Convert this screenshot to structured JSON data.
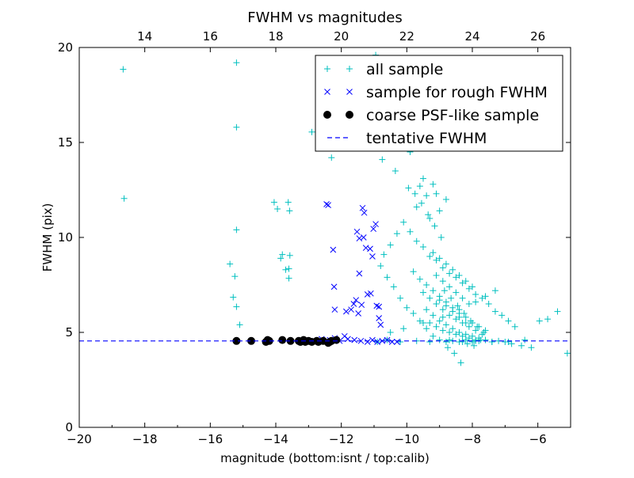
{
  "chart_data": {
    "type": "scatter",
    "title": "FWHM vs magnitudes",
    "xlabel": "magnitude (bottom:isnt / top:calib)",
    "ylabel": "FWHM (pix)",
    "xlim": [
      -20,
      -5
    ],
    "ylim": [
      0,
      20
    ],
    "xticks": [
      -20,
      -18,
      -16,
      -14,
      -12,
      -10,
      -8,
      -6
    ],
    "xtick_labels": [
      "−20",
      "−18",
      "−16",
      "−14",
      "−12",
      "−10",
      "−8",
      "−6"
    ],
    "yticks": [
      0,
      5,
      10,
      15,
      20
    ],
    "ytick_labels": [
      "0",
      "5",
      "10",
      "15",
      "20"
    ],
    "top_axis": {
      "offset": 32,
      "ticks": [
        14,
        16,
        18,
        20,
        22,
        24,
        26
      ],
      "tick_labels": [
        "14",
        "16",
        "18",
        "20",
        "22",
        "24",
        "26"
      ]
    },
    "grid": false,
    "legend_position": "top-right",
    "series": [
      {
        "name": "all sample",
        "marker": "plus",
        "color": "#00BFBF",
        "x": [
          -15.2,
          -15.2,
          -15.2,
          -15.4,
          -15.25,
          -15.3,
          -15.2,
          -15.1,
          -18.66,
          -18.63,
          -14.05,
          -13.95,
          -13.62,
          -13.58,
          -13.57,
          -13.8,
          -13.85,
          -13.6,
          -13.7,
          -13.6,
          -12.9,
          -12.3,
          -11.05,
          -10.95,
          -10.75,
          -10.35,
          -9.9,
          -9.6,
          -9.5,
          -9.2,
          -9.1,
          -9.4,
          -8.8,
          -9.0,
          -9.3,
          -9.7,
          -10.1,
          -10.3,
          -10.5,
          -10.7,
          -10.8,
          -10.6,
          -10.4,
          -10.2,
          -10.0,
          -9.8,
          -9.6,
          -9.4,
          -9.2,
          -9.0,
          -8.8,
          -8.6,
          -8.4,
          -8.2,
          -8.0,
          -7.8,
          -7.6,
          -7.4,
          -7.2,
          -7.0,
          -6.8,
          -6.5,
          -6.2,
          -5.95,
          -5.7,
          -5.4,
          -5.1,
          -9.9,
          -9.7,
          -9.5,
          -9.3,
          -9.1,
          -8.9,
          -8.7,
          -8.5,
          -8.3,
          -8.1,
          -7.9,
          -7.7,
          -7.5,
          -7.3,
          -7.1,
          -6.9,
          -6.7,
          -9.8,
          -9.6,
          -9.4,
          -9.2,
          -9.0,
          -8.8,
          -8.6,
          -8.4,
          -8.2,
          -8.0,
          -7.8,
          -7.6,
          -9.5,
          -9.3,
          -9.1,
          -8.9,
          -8.7,
          -8.5,
          -8.3,
          -8.1,
          -7.9,
          -7.7,
          -9.4,
          -9.2,
          -9.0,
          -8.8,
          -8.6,
          -8.4,
          -8.2,
          -8.0,
          -7.8,
          -9.3,
          -9.1,
          -8.9,
          -8.7,
          -8.5,
          -8.3,
          -8.1,
          -7.9,
          -9.2,
          -9.0,
          -8.8,
          -8.6,
          -8.4,
          -8.2,
          -8.0,
          -9.1,
          -8.9,
          -8.7,
          -8.5,
          -8.3,
          -8.1,
          -9.0,
          -8.8,
          -8.6,
          -8.4,
          -8.2,
          -10.9,
          -10.6,
          -10.2,
          -9.7,
          -9.3,
          -8.7,
          -8.3,
          -7.9,
          -7.4,
          -6.9,
          -6.4,
          -10.5,
          -10.1,
          -9.5,
          -8.9,
          -8.4,
          -7.9,
          -7.6,
          -7.3,
          -8.25,
          -8.45,
          -8.65,
          -8.85,
          -8.05,
          -7.85,
          -7.65,
          -8.35,
          -8.55,
          -8.75,
          -8.15,
          -7.95,
          -7.75,
          -9.35,
          -9.55,
          -9.75,
          -9.95,
          -9.15,
          -8.95
        ],
        "y": [
          19.2,
          15.8,
          10.4,
          8.6,
          7.95,
          6.85,
          6.35,
          5.4,
          18.85,
          12.05,
          11.85,
          11.5,
          11.85,
          11.4,
          9.05,
          9.1,
          8.9,
          8.35,
          8.3,
          7.85,
          15.55,
          14.2,
          17.9,
          19.6,
          14.1,
          13.5,
          14.5,
          12.7,
          13.1,
          12.8,
          12.3,
          12.2,
          12.0,
          11.4,
          11.0,
          11.6,
          10.8,
          10.2,
          9.6,
          9.1,
          8.5,
          7.9,
          7.4,
          6.8,
          6.3,
          6.0,
          5.6,
          5.2,
          4.8,
          4.6,
          4.5,
          4.55,
          4.5,
          4.6,
          4.5,
          4.55,
          4.6,
          4.5,
          4.55,
          4.5,
          4.4,
          4.3,
          4.2,
          5.6,
          5.7,
          6.1,
          3.9,
          10.3,
          9.8,
          9.5,
          9.0,
          8.8,
          8.4,
          8.1,
          7.9,
          7.6,
          7.3,
          7.0,
          6.8,
          6.5,
          6.1,
          5.9,
          5.6,
          5.3,
          8.2,
          7.8,
          7.5,
          7.2,
          6.9,
          6.6,
          6.3,
          6.0,
          5.8,
          5.5,
          5.3,
          5.1,
          7.1,
          6.8,
          6.5,
          6.2,
          5.9,
          5.7,
          5.5,
          5.3,
          5.1,
          4.9,
          6.2,
          5.9,
          5.6,
          5.4,
          5.2,
          5.0,
          4.9,
          4.8,
          4.7,
          5.5,
          5.3,
          5.1,
          5.0,
          4.9,
          4.8,
          4.7,
          4.6,
          9.2,
          8.9,
          8.6,
          8.3,
          8.0,
          7.7,
          7.4,
          8.0,
          7.7,
          7.4,
          7.1,
          6.8,
          6.5,
          6.7,
          6.4,
          6.1,
          5.8,
          5.5,
          4.5,
          4.6,
          4.5,
          4.55,
          4.5,
          4.6,
          4.5,
          4.55,
          4.5,
          4.5,
          4.6,
          5.0,
          5.2,
          5.5,
          5.8,
          6.2,
          6.6,
          6.9,
          7.2,
          6.0,
          6.4,
          6.8,
          7.2,
          5.6,
          5.3,
          5.0,
          3.4,
          3.9,
          4.2,
          4.4,
          4.3,
          4.6,
          11.2,
          11.8,
          12.3,
          12.6,
          10.6,
          10.0
        ]
      },
      {
        "name": "sample for rough FWHM",
        "marker": "x",
        "color": "#0000FF",
        "x": [
          -12.45,
          -12.4,
          -11.35,
          -11.3,
          -11.02,
          -10.95,
          -11.52,
          -11.45,
          -11.32,
          -11.25,
          -11.12,
          -11.05,
          -11.85,
          -11.7,
          -11.62,
          -11.55,
          -11.48,
          -11.38,
          -11.2,
          -11.1,
          -10.92,
          -10.85,
          -12.25,
          -12.22,
          -12.2,
          -11.45,
          -10.85,
          -10.8,
          -12.6,
          -12.55,
          -12.35,
          -12.2,
          -12.05,
          -11.9,
          -11.8,
          -11.6,
          -11.4,
          -11.2,
          -11.05,
          -10.9,
          -10.75,
          -10.6,
          -10.45,
          -10.3
        ],
        "y": [
          11.75,
          11.7,
          11.55,
          11.3,
          10.45,
          10.7,
          10.3,
          9.95,
          10.0,
          9.45,
          9.4,
          9.0,
          6.1,
          6.2,
          6.5,
          6.7,
          6.0,
          6.45,
          7.0,
          7.05,
          6.4,
          5.75,
          9.35,
          7.4,
          6.2,
          8.1,
          6.35,
          5.4,
          4.65,
          4.55,
          4.6,
          4.7,
          4.55,
          4.8,
          4.65,
          4.6,
          4.55,
          4.5,
          4.6,
          4.5,
          4.55,
          4.6,
          4.5,
          4.5
        ]
      },
      {
        "name": "coarse PSF-like sample",
        "marker": "dot",
        "color": "#000000",
        "x": [
          -15.2,
          -14.75,
          -14.3,
          -14.25,
          -14.2,
          -13.8,
          -13.55,
          -13.3,
          -13.25,
          -13.15,
          -13.1,
          -13.0,
          -12.9,
          -12.75,
          -12.7,
          -12.55,
          -12.4,
          -12.35,
          -12.3,
          -12.15
        ],
        "y": [
          4.55,
          4.55,
          4.5,
          4.6,
          4.55,
          4.6,
          4.55,
          4.55,
          4.5,
          4.6,
          4.5,
          4.55,
          4.5,
          4.55,
          4.5,
          4.55,
          4.45,
          4.5,
          4.55,
          4.6
        ]
      },
      {
        "name": "tentative FWHM",
        "marker": "dashed-line",
        "color": "#0000FF",
        "value": 4.55
      }
    ]
  }
}
